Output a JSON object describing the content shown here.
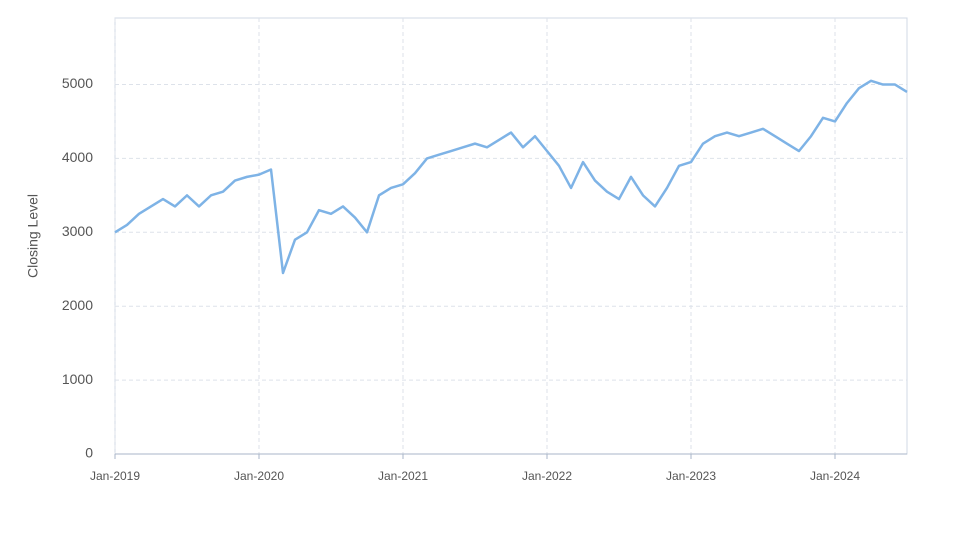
{
  "chart_data": {
    "type": "line",
    "y_label": "Closing Level",
    "color": "#7eb3e6",
    "grid": true,
    "x": [
      "2019-01",
      "2019-02",
      "2019-03",
      "2019-04",
      "2019-05",
      "2019-06",
      "2019-07",
      "2019-08",
      "2019-09",
      "2019-10",
      "2019-11",
      "2019-12",
      "2020-01",
      "2020-02",
      "2020-03",
      "2020-04",
      "2020-05",
      "2020-06",
      "2020-07",
      "2020-08",
      "2020-09",
      "2020-10",
      "2020-11",
      "2020-12",
      "2021-01",
      "2021-02",
      "2021-03",
      "2021-04",
      "2021-05",
      "2021-06",
      "2021-07",
      "2021-08",
      "2021-09",
      "2021-10",
      "2021-11",
      "2021-12",
      "2022-01",
      "2022-02",
      "2022-03",
      "2022-04",
      "2022-05",
      "2022-06",
      "2022-07",
      "2022-08",
      "2022-09",
      "2022-10",
      "2022-11",
      "2022-12",
      "2023-01",
      "2023-02",
      "2023-03",
      "2023-04",
      "2023-05",
      "2023-06",
      "2023-07",
      "2023-08",
      "2023-09",
      "2023-10",
      "2023-11",
      "2023-12",
      "2024-01",
      "2024-02",
      "2024-03",
      "2024-04",
      "2024-05",
      "2024-06",
      "2024-07"
    ],
    "values": [
      3000,
      3100,
      3250,
      3350,
      3450,
      3350,
      3500,
      3350,
      3500,
      3550,
      3700,
      3750,
      3780,
      3850,
      2450,
      2900,
      3000,
      3300,
      3250,
      3350,
      3200,
      3000,
      3500,
      3600,
      3650,
      3800,
      4000,
      4050,
      4100,
      4150,
      4200,
      4150,
      4250,
      4350,
      4150,
      4300,
      4100,
      3900,
      3600,
      3950,
      3700,
      3550,
      3450,
      3750,
      3500,
      3350,
      3600,
      3900,
      3950,
      4200,
      4300,
      4350,
      4300,
      4350,
      4400,
      4300,
      4200,
      4100,
      4300,
      4550,
      4500,
      4750,
      4950,
      5050,
      5000,
      5000,
      4900
    ],
    "xlim": [
      "2019-01",
      "2024-07"
    ],
    "xticks": [
      {
        "value": "2019-01",
        "label": "Jan-2019"
      },
      {
        "value": "2020-01",
        "label": "Jan-2020"
      },
      {
        "value": "2021-01",
        "label": "Jan-2021"
      },
      {
        "value": "2022-01",
        "label": "Jan-2022"
      },
      {
        "value": "2023-01",
        "label": "Jan-2023"
      },
      {
        "value": "2024-01",
        "label": "Jan-2024"
      }
    ],
    "ylim": [
      0,
      5900
    ],
    "yticks": [
      0,
      1000,
      2000,
      3000,
      4000,
      5000
    ]
  }
}
